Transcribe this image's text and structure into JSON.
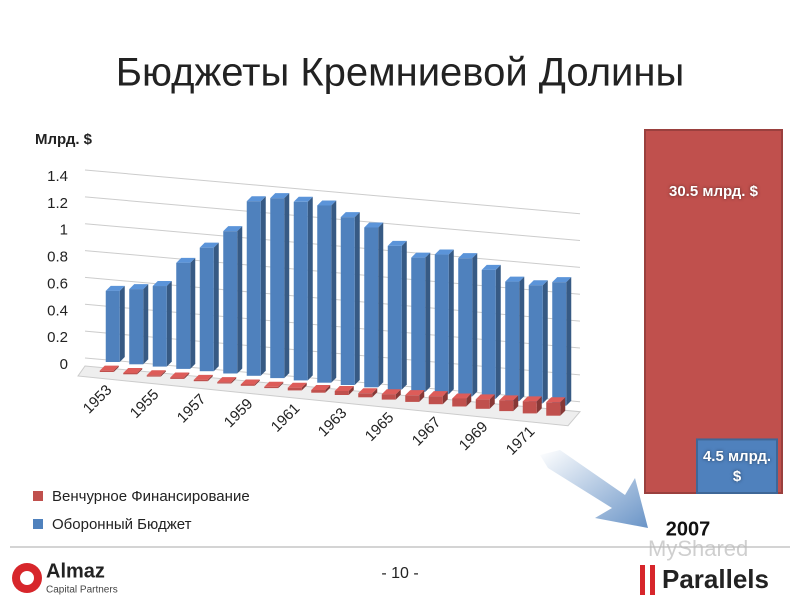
{
  "slide": {
    "title": "Бюджеты Кремниевой Долины",
    "page_number": "- 10 -",
    "logo_left": "Almaz",
    "logo_left_sub": "Capital Partners",
    "logo_right": "Parallels",
    "watermark": "MyShared"
  },
  "chart_data": [
    {
      "type": "bar3d",
      "y_label": "Млрд. $",
      "categories": [
        "1953",
        null,
        "1955",
        null,
        "1957",
        null,
        "1959",
        null,
        "1961",
        null,
        "1963",
        null,
        "1965",
        null,
        "1967",
        null,
        "1969",
        null,
        "1971",
        null
      ],
      "series": [
        {
          "name": "Венчурное Финансирование",
          "color": "#c0504d",
          "row": "front",
          "values": [
            0.01,
            0.01,
            0.01,
            0.01,
            0.01,
            0.01,
            0.01,
            0.01,
            0.02,
            0.02,
            0.03,
            0.03,
            0.04,
            0.05,
            0.06,
            0.06,
            0.07,
            0.08,
            0.09,
            0.1
          ]
        },
        {
          "name": "Оборонный Бюджет",
          "color": "#4f81bd",
          "row": "back",
          "values": [
            0.53,
            0.56,
            0.6,
            0.79,
            0.92,
            1.06,
            1.3,
            1.34,
            1.33,
            1.32,
            1.25,
            1.19,
            1.07,
            1.0,
            1.04,
            1.03,
            0.96,
            0.89,
            0.88,
            0.92
          ]
        }
      ],
      "ylim": [
        0,
        1.4
      ],
      "yticks": [
        0,
        0.2,
        0.4,
        0.6,
        0.8,
        1,
        1.2,
        1.4
      ],
      "grid": true
    },
    {
      "type": "overlap",
      "categories": [
        "2007"
      ],
      "series": [
        {
          "color": "#c0504d",
          "values": [
            30.5
          ],
          "value_labels": [
            "30.5 млрд. $"
          ]
        },
        {
          "color": "#4f81bd",
          "values": [
            4.5
          ],
          "value_labels": [
            "4.5 млрд. $"
          ]
        }
      ]
    }
  ]
}
